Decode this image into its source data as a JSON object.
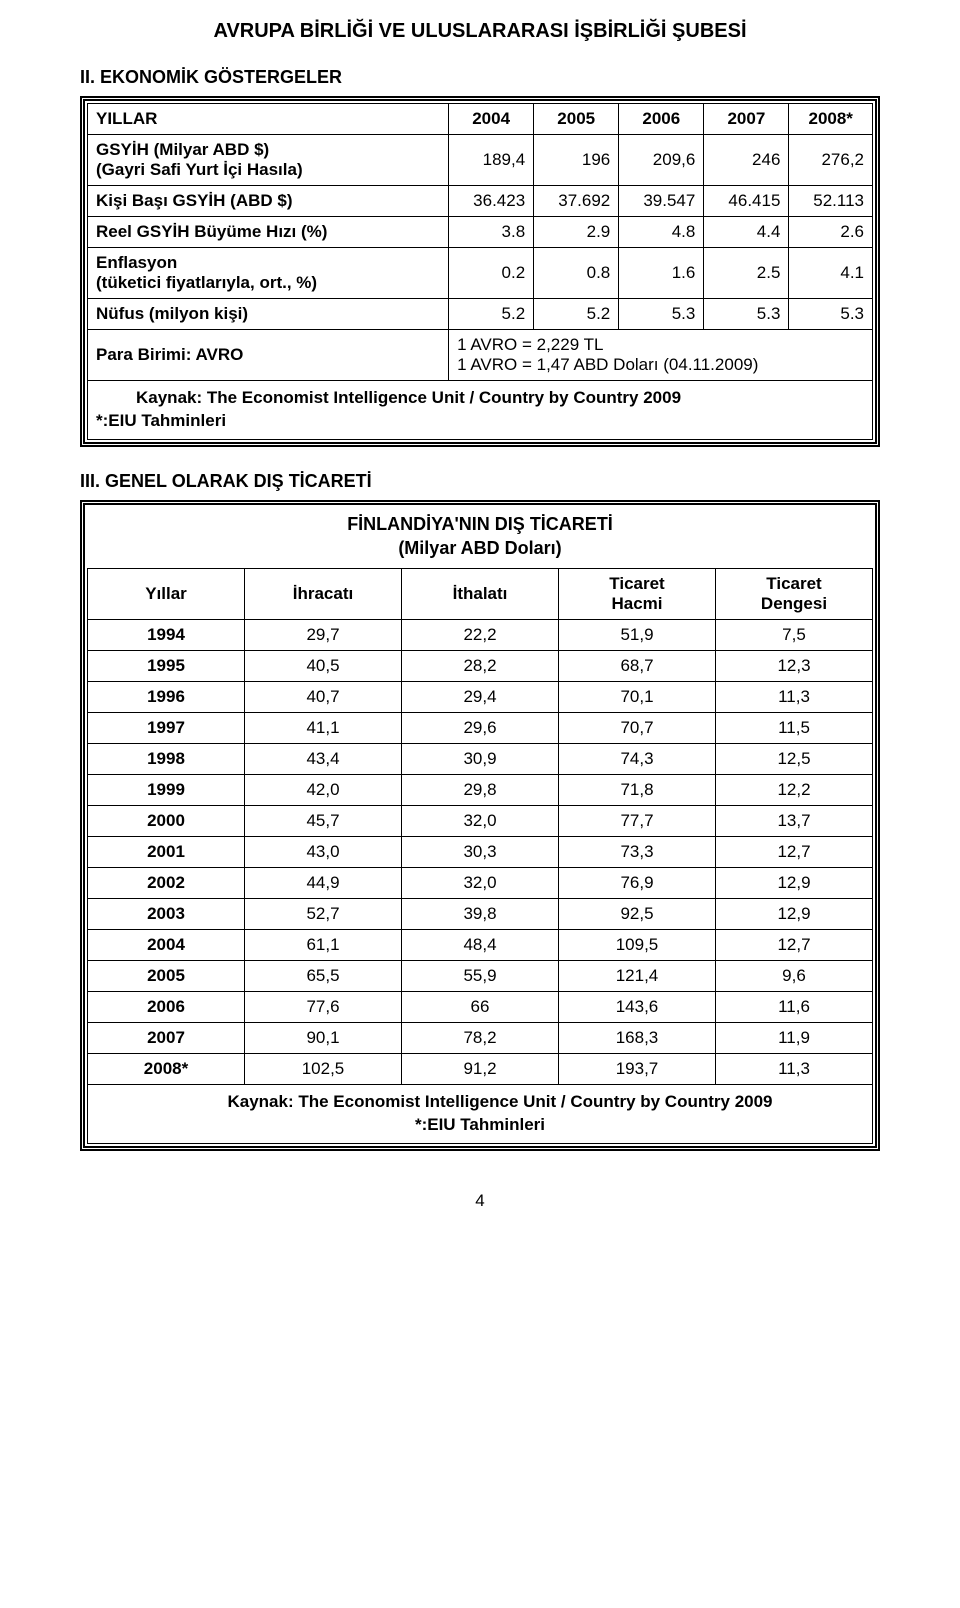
{
  "header_title": "AVRUPA BİRLİĞİ VE ULUSLARARASI İŞBİRLİĞİ ŞUBESİ",
  "section2_heading": "II.  EKONOMİK GÖSTERGELER",
  "table1": {
    "years_label": "YILLAR",
    "years": [
      "2004",
      "2005",
      "2006",
      "2007",
      "2008*"
    ],
    "rows": [
      {
        "label": "GSYİH (Milyar ABD $)\n(Gayri Safi Yurt İçi Hasıla)",
        "cells": [
          "189,4",
          "196",
          "209,6",
          "246",
          "276,2"
        ]
      },
      {
        "label": "Kişi Başı GSYİH (ABD $)",
        "cells": [
          "36.423",
          "37.692",
          "39.547",
          "46.415",
          "52.113"
        ]
      },
      {
        "label": "Reel GSYİH Büyüme Hızı (%)",
        "cells": [
          "3.8",
          "2.9",
          "4.8",
          "4.4",
          "2.6"
        ]
      },
      {
        "label": "Enflasyon\n(tüketici fiyatlarıyla, ort., %)",
        "cells": [
          "0.2",
          "0.8",
          "1.6",
          "2.5",
          "4.1"
        ]
      },
      {
        "label": "Nüfus (milyon kişi)",
        "cells": [
          "5.2",
          "5.2",
          "5.3",
          "5.3",
          "5.3"
        ]
      }
    ],
    "currency_row_label": "Para Birimi: AVRO",
    "currency_text": "1 AVRO =  2,229 TL\n1 AVRO =  1,47 ABD Doları (04.11.2009)",
    "footnote": "Kaynak: The Economist Intelligence Unit / Country by Country 2009\n*:EIU Tahminleri"
  },
  "section3_heading": "III.  GENEL OLARAK DIŞ TİCARETİ",
  "table2": {
    "title_line1": "FİNLANDİYA'NIN DIŞ TİCARETİ",
    "title_line2": "(Milyar ABD Doları)",
    "headers": [
      "Yıllar",
      "İhracatı",
      "İthalatı",
      "Ticaret Hacmi",
      "Ticaret Dengesi"
    ],
    "rows": [
      [
        "1994",
        "29,7",
        "22,2",
        "51,9",
        "7,5"
      ],
      [
        "1995",
        "40,5",
        "28,2",
        "68,7",
        "12,3"
      ],
      [
        "1996",
        "40,7",
        "29,4",
        "70,1",
        "11,3"
      ],
      [
        "1997",
        "41,1",
        "29,6",
        "70,7",
        "11,5"
      ],
      [
        "1998",
        "43,4",
        "30,9",
        "74,3",
        "12,5"
      ],
      [
        "1999",
        "42,0",
        "29,8",
        "71,8",
        "12,2"
      ],
      [
        "2000",
        "45,7",
        "32,0",
        "77,7",
        "13,7"
      ],
      [
        "2001",
        "43,0",
        "30,3",
        "73,3",
        "12,7"
      ],
      [
        "2002",
        "44,9",
        "32,0",
        "76,9",
        "12,9"
      ],
      [
        "2003",
        "52,7",
        "39,8",
        "92,5",
        "12,9"
      ],
      [
        "2004",
        "61,1",
        "48,4",
        "109,5",
        "12,7"
      ],
      [
        "2005",
        "65,5",
        "55,9",
        "121,4",
        "9,6"
      ],
      [
        "2006",
        "77,6",
        "66",
        "143,6",
        "11,6"
      ],
      [
        "2007",
        "90,1",
        "78,2",
        "168,3",
        "11,9"
      ],
      [
        "2008*",
        "102,5",
        "91,2",
        "193,7",
        "11,3"
      ]
    ],
    "footnote": "Kaynak: The Economist Intelligence Unit / Country by Country 2009\n*:EIU Tahminleri"
  },
  "page_number": "4"
}
